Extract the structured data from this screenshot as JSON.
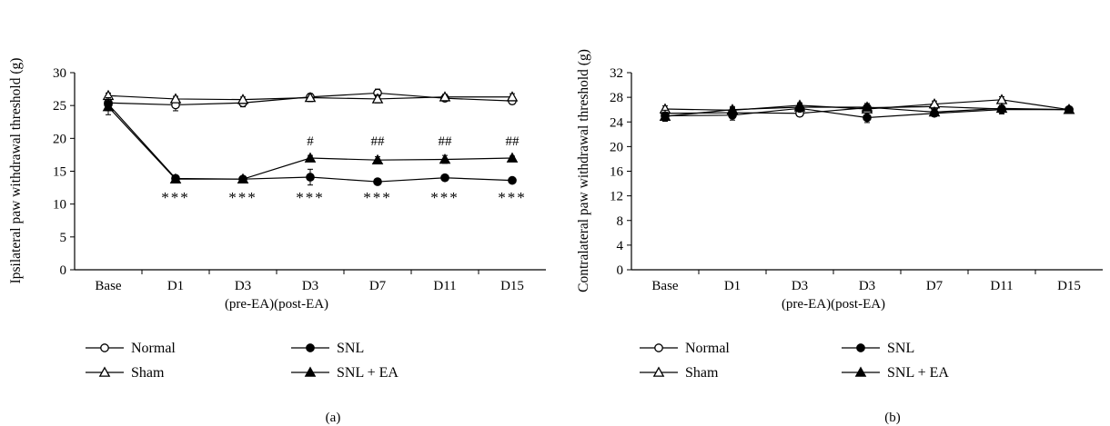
{
  "chart_data": [
    {
      "type": "line",
      "panel_label": "(a)",
      "categories": [
        "Base",
        "D1",
        "D3",
        "D3",
        "D7",
        "D11",
        "D15"
      ],
      "category_sublabel": "(pre-EA)(post-EA)",
      "xlabel": "",
      "ylabel": "Ipsilateral paw withdrawal threshold (g)",
      "ylim": [
        0,
        30
      ],
      "yticks": [
        "0",
        "5",
        "10",
        "15",
        "20",
        "25",
        "30"
      ],
      "series": [
        {
          "name": "Normal",
          "marker": "circle-open",
          "values": [
            25.4,
            25.1,
            25.4,
            26.3,
            26.9,
            26.1,
            25.7
          ],
          "errors": [
            0.5,
            0.9,
            0.6,
            0.5,
            0.6,
            0.4,
            0.5
          ]
        },
        {
          "name": "Sham",
          "marker": "triangle-open",
          "values": [
            26.5,
            26.0,
            25.9,
            26.2,
            26.0,
            26.3,
            26.3
          ],
          "errors": [
            0.4,
            0.4,
            0.4,
            0.6,
            0.6,
            0.4,
            0.5
          ]
        },
        {
          "name": "SNL",
          "marker": "circle-filled",
          "values": [
            25.2,
            13.9,
            13.8,
            14.1,
            13.4,
            14.0,
            13.6
          ],
          "errors": [
            1.0,
            0.5,
            0.4,
            1.2,
            0.3,
            0.4,
            0.3
          ]
        },
        {
          "name": "SNL + EA",
          "marker": "triangle-filled",
          "values": [
            24.8,
            13.8,
            13.8,
            17.0,
            16.7,
            16.8,
            17.0
          ],
          "errors": [
            1.2,
            0.4,
            0.4,
            0.4,
            0.5,
            0.6,
            0.3
          ]
        }
      ],
      "annotations": [
        {
          "category_index": 1,
          "text": "***",
          "kind": "star"
        },
        {
          "category_index": 2,
          "text": "***",
          "kind": "star"
        },
        {
          "category_index": 3,
          "text": "***",
          "kind": "star"
        },
        {
          "category_index": 4,
          "text": "***",
          "kind": "star"
        },
        {
          "category_index": 5,
          "text": "***",
          "kind": "star"
        },
        {
          "category_index": 6,
          "text": "***",
          "kind": "star"
        },
        {
          "category_index": 3,
          "text": "#",
          "kind": "hash"
        },
        {
          "category_index": 4,
          "text": "##",
          "kind": "hash"
        },
        {
          "category_index": 5,
          "text": "##",
          "kind": "hash"
        },
        {
          "category_index": 6,
          "text": "##",
          "kind": "hash"
        }
      ],
      "legend": [
        "Normal",
        "SNL",
        "Sham",
        "SNL + EA"
      ],
      "legend_position": "bottom"
    },
    {
      "type": "line",
      "panel_label": "(b)",
      "categories": [
        "Base",
        "D1",
        "D3",
        "D3",
        "D7",
        "D11",
        "D15"
      ],
      "category_sublabel": "(pre-EA)(post-EA)",
      "xlabel": "",
      "ylabel": "Contralateral paw withdrawal threshold (g)",
      "ylim": [
        0,
        32
      ],
      "yticks": [
        "0",
        "4",
        "8",
        "12",
        "16",
        "20",
        "24",
        "28",
        "32"
      ],
      "series": [
        {
          "name": "Normal",
          "marker": "circle-open",
          "values": [
            25.4,
            25.5,
            25.4,
            26.3,
            26.5,
            26.1,
            26.0
          ],
          "errors": [
            0.5,
            0.4,
            0.5,
            0.4,
            0.5,
            0.4,
            0.4
          ]
        },
        {
          "name": "Sham",
          "marker": "triangle-open",
          "values": [
            26.1,
            25.9,
            26.7,
            26.1,
            26.9,
            27.6,
            26.0
          ],
          "errors": [
            0.5,
            0.4,
            0.4,
            0.5,
            0.5,
            0.5,
            0.4
          ]
        },
        {
          "name": "SNL",
          "marker": "circle-filled",
          "values": [
            25.0,
            25.1,
            26.2,
            24.7,
            25.4,
            26.0,
            26.0
          ],
          "errors": [
            0.9,
            0.8,
            0.5,
            0.8,
            0.5,
            0.7,
            0.4
          ]
        },
        {
          "name": "SNL + EA",
          "marker": "triangle-filled",
          "values": [
            24.9,
            26.0,
            26.4,
            26.4,
            25.6,
            26.2,
            26.0
          ],
          "errors": [
            0.7,
            0.5,
            0.5,
            0.6,
            0.5,
            0.5,
            0.4
          ]
        }
      ],
      "legend": [
        "Normal",
        "SNL",
        "Sham",
        "SNL + EA"
      ],
      "legend_position": "bottom"
    }
  ]
}
